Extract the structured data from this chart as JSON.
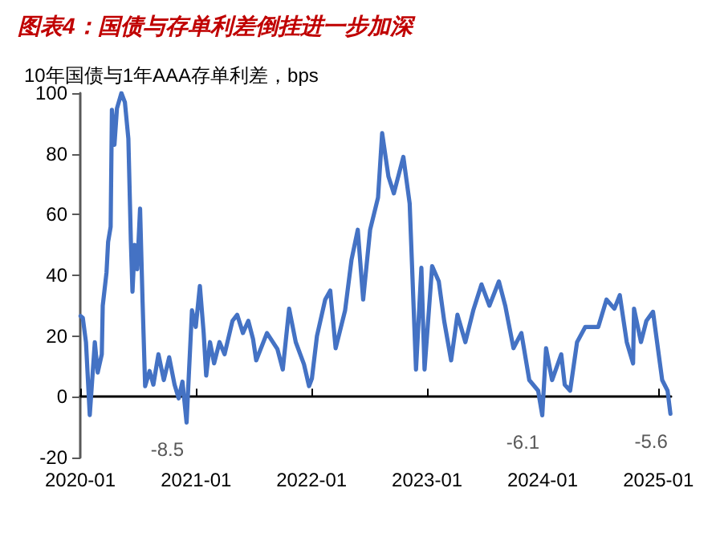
{
  "chart_data": {
    "type": "line",
    "title": "图表4：国债与存单利差倒挂进一步加深",
    "ylabel": "10年国债与1年AAA存单利差，bps",
    "x": [
      "2020-01-02",
      "2020-01-09",
      "2020-01-19",
      "2020-01-31",
      "2020-02-16",
      "2020-02-25",
      "2020-03-09",
      "2020-03-12",
      "2020-03-24",
      "2020-03-29",
      "2020-04-06",
      "2020-04-10",
      "2020-04-18",
      "2020-04-26",
      "2020-05-10",
      "2020-05-21",
      "2020-06-01",
      "2020-06-09",
      "2020-06-14",
      "2020-06-21",
      "2020-06-29",
      "2020-07-08",
      "2020-07-16",
      "2020-07-24",
      "2020-08-07",
      "2020-08-19",
      "2020-09-04",
      "2020-09-21",
      "2020-10-08",
      "2020-10-25",
      "2020-11-07",
      "2020-11-19",
      "2020-12-02",
      "2020-12-09",
      "2020-12-19",
      "2020-12-31",
      "2021-01-13",
      "2021-01-25",
      "2021-02-02",
      "2021-02-14",
      "2021-02-27",
      "2021-03-16",
      "2021-04-01",
      "2021-04-26",
      "2021-05-11",
      "2021-05-29",
      "2021-06-15",
      "2021-06-30",
      "2021-07-10",
      "2021-08-13",
      "2021-09-15",
      "2021-10-02",
      "2021-10-22",
      "2021-11-12",
      "2021-12-08",
      "2021-12-24",
      "2022-01-02",
      "2022-01-18",
      "2022-02-13",
      "2022-03-01",
      "2022-03-18",
      "2022-04-17",
      "2022-05-07",
      "2022-05-27",
      "2022-06-13",
      "2022-07-05",
      "2022-07-30",
      "2022-08-12",
      "2022-09-01",
      "2022-09-18",
      "2022-10-18",
      "2022-11-07",
      "2022-11-27",
      "2022-12-14",
      "2022-12-24",
      "2023-01-17",
      "2023-02-07",
      "2023-02-24",
      "2023-03-18",
      "2023-04-07",
      "2023-05-02",
      "2023-05-27",
      "2023-06-22",
      "2023-07-17",
      "2023-08-16",
      "2023-09-05",
      "2023-10-01",
      "2023-10-26",
      "2023-11-20",
      "2023-12-18",
      "2023-12-31",
      "2024-01-12",
      "2024-01-31",
      "2024-02-29",
      "2024-03-11",
      "2024-03-28",
      "2024-04-19",
      "2024-05-15",
      "2024-06-25",
      "2024-07-21",
      "2024-08-15",
      "2024-09-01",
      "2024-09-23",
      "2024-10-13",
      "2024-10-16",
      "2024-11-07",
      "2024-11-24",
      "2024-12-15",
      "2025-01-02",
      "2025-01-13",
      "2025-01-30",
      "2025-02-08"
    ],
    "series": [
      {
        "color": "#4472c4",
        "values": [
          26.6,
          26,
          18,
          -6,
          18,
          8,
          14,
          30,
          41,
          51,
          56,
          94.5,
          83,
          95,
          100,
          97,
          85,
          51,
          34.6,
          50,
          42,
          62,
          31,
          3.5,
          8.5,
          4,
          14,
          5.5,
          13,
          4,
          -0.5,
          5,
          -8.5,
          7,
          28.5,
          23,
          36.5,
          21,
          7,
          18,
          11,
          18,
          14,
          25,
          27,
          21,
          25,
          19,
          12,
          21,
          15.7,
          9,
          29,
          18,
          10.7,
          3.5,
          6,
          20,
          32,
          35,
          16,
          28.5,
          45,
          55,
          32,
          55,
          65.6,
          86.8,
          72.5,
          67,
          79,
          63.6,
          9,
          42.5,
          9,
          43,
          38,
          25,
          12,
          27,
          18,
          28.5,
          37,
          30,
          38,
          30,
          16,
          21,
          5.5,
          2,
          -6.1,
          16,
          5.5,
          14,
          4,
          2,
          18,
          23,
          23,
          32,
          29,
          33.5,
          18,
          11,
          29,
          18,
          25,
          28,
          14,
          5.5,
          2,
          -5.6
        ]
      }
    ],
    "xlim": [
      "2020-01-01",
      "2025-02-10"
    ],
    "xticks": [
      {
        "value": "2020-01-01",
        "label": "2020-01"
      },
      {
        "value": "2021-01-01",
        "label": "2021-01"
      },
      {
        "value": "2022-01-01",
        "label": "2022-01"
      },
      {
        "value": "2023-01-01",
        "label": "2023-01"
      },
      {
        "value": "2024-01-01",
        "label": "2024-01"
      },
      {
        "value": "2025-01-01",
        "label": "2025-01"
      }
    ],
    "ylim": [
      -20,
      100
    ],
    "yticks": [
      -20,
      0,
      20,
      40,
      60,
      80,
      100
    ],
    "annotations": [
      {
        "text": "-8.5",
        "x": "2020-12-02",
        "y": -8.5
      },
      {
        "text": "-6.1",
        "x": "2023-12-31",
        "y": -6.1
      },
      {
        "text": "-5.6",
        "x": "2025-02-08",
        "y": -5.6
      }
    ],
    "marker": "none",
    "line_style": "solid"
  }
}
